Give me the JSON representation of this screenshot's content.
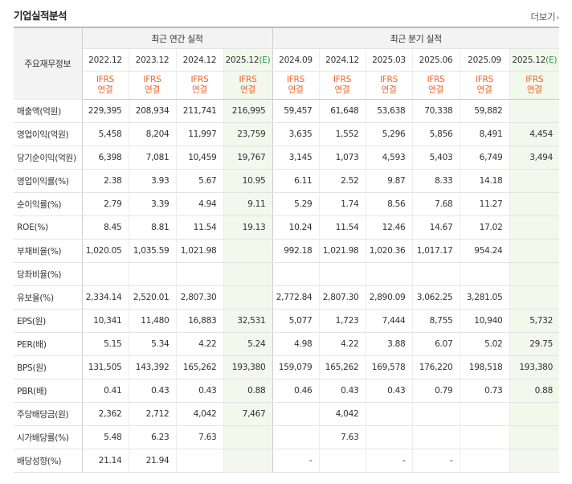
{
  "title": "기업실적분석",
  "more": "더보기",
  "corner_label": "주요재무정보",
  "group_annual": "최근 연간 실적",
  "group_quarterly": "최근 분기 실적",
  "periods": [
    "2022.12",
    "2023.12",
    "2024.12",
    "2025.12",
    "2024.09",
    "2024.12",
    "2025.03",
    "2025.06",
    "2025.09",
    "2025.12"
  ],
  "estimate_marker": "(E)",
  "ifrs": "IFRS",
  "consolidated": "연결",
  "rows": [
    {
      "label": "매출액(억원)",
      "values": [
        "229,395",
        "208,934",
        "211,741",
        "216,995",
        "59,457",
        "61,648",
        "53,638",
        "70,338",
        "59,882",
        ""
      ]
    },
    {
      "label": "영업이익(억원)",
      "values": [
        "5,458",
        "8,204",
        "11,997",
        "23,759",
        "3,635",
        "1,552",
        "5,296",
        "5,856",
        "8,491",
        "4,454"
      ]
    },
    {
      "label": "당기순이익(억원)",
      "values": [
        "6,398",
        "7,081",
        "10,459",
        "19,767",
        "3,145",
        "1,073",
        "4,593",
        "5,403",
        "6,749",
        "3,494"
      ]
    },
    {
      "label": "영업이익률(%)",
      "values": [
        "2.38",
        "3.93",
        "5.67",
        "10.95",
        "6.11",
        "2.52",
        "9.87",
        "8.33",
        "14.18",
        ""
      ]
    },
    {
      "label": "순이익률(%)",
      "values": [
        "2.79",
        "3.39",
        "4.94",
        "9.11",
        "5.29",
        "1.74",
        "8.56",
        "7.68",
        "11.27",
        ""
      ]
    },
    {
      "label": "ROE(%)",
      "values": [
        "8.45",
        "8.81",
        "11.54",
        "19.13",
        "10.24",
        "11.54",
        "12.46",
        "14.67",
        "17.02",
        ""
      ]
    },
    {
      "label": "부채비율(%)",
      "values": [
        "1,020.05",
        "1,035.59",
        "1,021.98",
        "",
        "992.18",
        "1,021.98",
        "1,020.36",
        "1,017.17",
        "954.24",
        ""
      ]
    },
    {
      "label": "당좌비율(%)",
      "values": [
        "",
        "",
        "",
        "",
        "",
        "",
        "",
        "",
        "",
        ""
      ]
    },
    {
      "label": "유보율(%)",
      "values": [
        "2,334.14",
        "2,520.01",
        "2,807.30",
        "",
        "2,772.84",
        "2,807.30",
        "2,890.09",
        "3,062.25",
        "3,281.05",
        ""
      ]
    },
    {
      "label": "EPS(원)",
      "values": [
        "10,341",
        "11,480",
        "16,883",
        "32,531",
        "5,077",
        "1,723",
        "7,444",
        "8,755",
        "10,940",
        "5,732"
      ]
    },
    {
      "label": "PER(배)",
      "values": [
        "5.15",
        "5.34",
        "4.22",
        "5.24",
        "4.98",
        "4.22",
        "3.88",
        "6.07",
        "5.02",
        "29.75"
      ]
    },
    {
      "label": "BPS(원)",
      "values": [
        "131,505",
        "143,392",
        "165,262",
        "193,380",
        "159,079",
        "165,262",
        "169,578",
        "176,220",
        "198,518",
        "193,380"
      ]
    },
    {
      "label": "PBR(배)",
      "values": [
        "0.41",
        "0.43",
        "0.43",
        "0.88",
        "0.46",
        "0.43",
        "0.43",
        "0.79",
        "0.73",
        "0.88"
      ]
    },
    {
      "label": "주당배당금(원)",
      "values": [
        "2,362",
        "2,712",
        "4,042",
        "7,467",
        "",
        "4,042",
        "",
        "",
        "",
        ""
      ]
    },
    {
      "label": "시가배당률(%)",
      "values": [
        "5.48",
        "6.23",
        "7.63",
        "",
        "",
        "7.63",
        "",
        "",
        "",
        ""
      ]
    },
    {
      "label": "배당성향(%)",
      "values": [
        "21.14",
        "21.94",
        "",
        "",
        "-",
        "",
        "-",
        "-",
        "",
        ""
      ]
    }
  ]
}
